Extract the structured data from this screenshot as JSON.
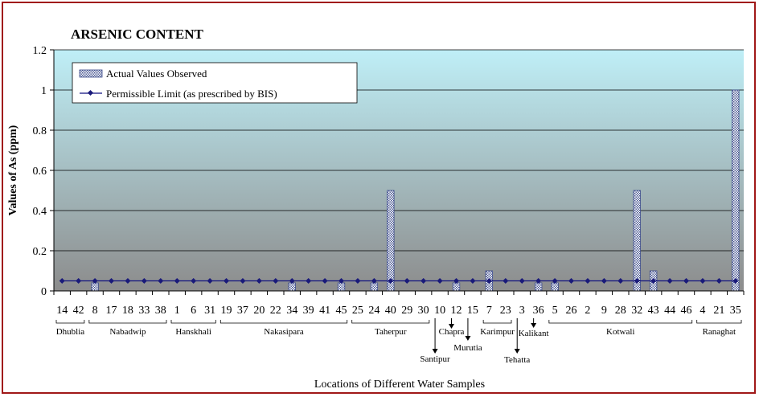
{
  "chart_data": {
    "type": "bar",
    "title": "ARSENIC CONTENT",
    "xlabel": "Locations of Different Water Samples",
    "ylabel": "Values of As (ppm)",
    "ylim": [
      0,
      1.2
    ],
    "yticks": [
      "0",
      "0.2",
      "0.4",
      "0.6",
      "0.8",
      "1",
      "1.2"
    ],
    "grid": true,
    "legend_position": "top-left",
    "categories": [
      "14",
      "42",
      "8",
      "17",
      "18",
      "33",
      "38",
      "1",
      "6",
      "31",
      "19",
      "37",
      "20",
      "22",
      "34",
      "39",
      "41",
      "45",
      "25",
      "24",
      "40",
      "29",
      "30",
      "10",
      "12",
      "15",
      "7",
      "23",
      "3",
      "36",
      "5",
      "26",
      "2",
      "9",
      "28",
      "32",
      "43",
      "44",
      "46",
      "4",
      "21",
      "35"
    ],
    "series": [
      {
        "name": "Actual Values Observed",
        "kind": "bar",
        "values": [
          0,
          0,
          0.04,
          0,
          0,
          0,
          0,
          0,
          0,
          0,
          0,
          0,
          0,
          0,
          0.04,
          0,
          0,
          0.04,
          0,
          0.04,
          0.5,
          0,
          0,
          0,
          0.04,
          0,
          0.1,
          0,
          0,
          0.04,
          0.04,
          0,
          0,
          0,
          0,
          0.5,
          0.1,
          0,
          0,
          0,
          0,
          1.0
        ]
      },
      {
        "name": "Permissible  Limit (as prescribed by BIS)",
        "kind": "line",
        "values": [
          0.05,
          0.05,
          0.05,
          0.05,
          0.05,
          0.05,
          0.05,
          0.05,
          0.05,
          0.05,
          0.05,
          0.05,
          0.05,
          0.05,
          0.05,
          0.05,
          0.05,
          0.05,
          0.05,
          0.05,
          0.05,
          0.05,
          0.05,
          0.05,
          0.05,
          0.05,
          0.05,
          0.05,
          0.05,
          0.05,
          0.05,
          0.05,
          0.05,
          0.05,
          0.05,
          0.05,
          0.05,
          0.05,
          0.05,
          0.05,
          0.05,
          0.05
        ]
      }
    ],
    "locations": [
      {
        "name": "Dhublia",
        "from": 0,
        "to": 1,
        "style": "bracket"
      },
      {
        "name": "Nabadwip",
        "from": 2,
        "to": 6,
        "style": "bracket"
      },
      {
        "name": "Hanskhali",
        "from": 7,
        "to": 9,
        "style": "bracket"
      },
      {
        "name": "Nakasipara",
        "from": 10,
        "to": 17,
        "style": "bracket"
      },
      {
        "name": "Taherpur",
        "from": 18,
        "to": 22,
        "style": "bracket"
      },
      {
        "name": "Santipur",
        "from": 23,
        "to": 23,
        "style": "arrow"
      },
      {
        "name": "Chapra",
        "from": 24,
        "to": 24,
        "style": "arrow"
      },
      {
        "name": "Murutia",
        "from": 25,
        "to": 25,
        "style": "arrow"
      },
      {
        "name": "Karimpur",
        "from": 26,
        "to": 27,
        "style": "bracket"
      },
      {
        "name": "Tehatta",
        "from": 28,
        "to": 28,
        "style": "arrow"
      },
      {
        "name": "Kalikant",
        "from": 29,
        "to": 29,
        "style": "arrow"
      },
      {
        "name": "Kotwali",
        "from": 30,
        "to": 38,
        "style": "bracket"
      },
      {
        "name": "Ranaghat",
        "from": 39,
        "to": 41,
        "style": "bracket"
      }
    ],
    "colors": {
      "plot_top": "#bfeff7",
      "plot_bottom": "#8c8c8c",
      "bar_fill": "#ffffff",
      "bar_pattern": "#3b4a8a",
      "line": "#101080",
      "marker": "#1a1a7a",
      "frame": "#a01818"
    }
  }
}
